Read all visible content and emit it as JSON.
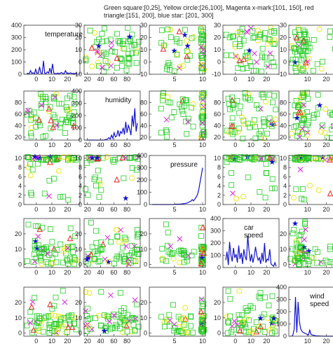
{
  "chart_data": {
    "type": "scatter-matrix",
    "title": "Green square:[0,25], Yellow circle:[26,100], Magenta x-mark:[101, 150], red triangle:[151, 200], blue star: [201, 300]",
    "variables": [
      "temperature",
      "humidity",
      "pressure",
      "car speed",
      "wind speed"
    ],
    "diagonal_labels": [
      [
        "temperature"
      ],
      [
        "humidity"
      ],
      [
        "pressure"
      ],
      [
        "car",
        "speed"
      ],
      [
        "wind",
        "speed"
      ]
    ],
    "diagonal_type": "line",
    "offdiagonal_type": "scatter",
    "colors": {
      "green": "#22cc22",
      "yellow": "#e8e800",
      "magenta": "#dd22dd",
      "red": "#ee2222",
      "blue": "#1111cc",
      "line": "#1111cc"
    },
    "classes": [
      {
        "marker": "square",
        "color": "#22cc22",
        "range": [
          0,
          25
        ]
      },
      {
        "marker": "circle",
        "color": "#e8e800",
        "range": [
          26,
          100
        ]
      },
      {
        "marker": "x-mark",
        "color": "#dd22dd",
        "range": [
          101,
          150
        ]
      },
      {
        "marker": "triangle",
        "color": "#ee2222",
        "range": [
          151,
          200
        ]
      },
      {
        "marker": "star",
        "color": "#1111cc",
        "range": [
          201,
          300
        ]
      }
    ],
    "x_axes": [
      {
        "var": "temperature",
        "ticks": [
          0,
          10,
          20
        ],
        "range": [
          -8,
          28
        ]
      },
      {
        "var": "humidity",
        "ticks": [
          20,
          40,
          60,
          80
        ],
        "range": [
          15,
          100
        ]
      },
      {
        "var": "pressure",
        "ticks": [
          5,
          10
        ],
        "range": [
          0.5,
          10.5
        ]
      },
      {
        "var": "car speed",
        "ticks": [
          0,
          10,
          20
        ],
        "range": [
          -8,
          28
        ]
      },
      {
        "var": "wind speed",
        "ticks": [
          10,
          20
        ],
        "range": [
          0,
          30
        ]
      }
    ],
    "y_axes": [
      {
        "var": "temperature",
        "ticks": [
          -10,
          0,
          10,
          20,
          30
        ],
        "range": [
          -10,
          30
        ]
      },
      {
        "var": "humidity",
        "ticks": [
          20,
          40,
          60,
          80
        ],
        "range": [
          15,
          100
        ]
      },
      {
        "var": "pressure",
        "ticks": [
          0,
          2,
          4,
          6,
          8,
          10
        ],
        "range": [
          0,
          10.6
        ]
      },
      {
        "var": "car speed",
        "ticks": [
          0,
          10,
          20
        ],
        "range": [
          -2,
          30
        ]
      },
      {
        "var": "wind speed",
        "ticks": [
          0,
          10,
          20
        ],
        "range": [
          -2,
          30
        ]
      }
    ],
    "diag_y_axis": {
      "ticks": [
        0,
        100,
        200,
        300,
        400
      ],
      "range": [
        0,
        400
      ]
    },
    "series": [
      {
        "name": "temperature",
        "values": [
          5,
          8,
          3,
          30,
          6,
          12,
          4,
          40,
          10,
          7,
          60,
          9,
          5,
          110,
          8,
          6,
          20,
          9,
          50,
          7,
          85,
          9,
          6,
          4,
          10,
          5,
          8,
          15,
          6,
          5,
          30,
          7,
          9,
          6,
          12,
          4,
          8,
          5,
          7,
          3
        ]
      },
      {
        "name": "humidity",
        "values": [
          0,
          0,
          0,
          0,
          0,
          0,
          0,
          0,
          0,
          0,
          0,
          0,
          0,
          0,
          3,
          5,
          10,
          20,
          8,
          40,
          15,
          60,
          25,
          35,
          80,
          30,
          70,
          55,
          100,
          45,
          150,
          60,
          120,
          90,
          40,
          200,
          110,
          260,
          70,
          140
        ]
      },
      {
        "name": "pressure",
        "values": [
          0,
          0,
          0,
          0,
          0,
          0,
          0,
          0,
          0,
          0,
          0,
          0,
          0,
          0,
          0,
          0,
          0,
          0,
          2,
          3,
          2,
          4,
          3,
          5,
          6,
          8,
          10,
          12,
          18,
          22,
          28,
          40,
          30,
          45,
          60,
          80,
          120,
          180,
          240,
          300
        ]
      },
      {
        "name": "car speed",
        "values": [
          60,
          130,
          20,
          210,
          100,
          50,
          160,
          80,
          110,
          40,
          180,
          70,
          120,
          30,
          150,
          90,
          60,
          260,
          140,
          50,
          110,
          40,
          90,
          170,
          100,
          60,
          80,
          30,
          120,
          50,
          200,
          40,
          70,
          60,
          150,
          30,
          20,
          10,
          40,
          10
        ]
      },
      {
        "name": "wind speed",
        "values": [
          0,
          10,
          60,
          320,
          30,
          280,
          120,
          60,
          40,
          30,
          25,
          20,
          15,
          10,
          50,
          15,
          10,
          8,
          5,
          3,
          2,
          2,
          1,
          1,
          1,
          0,
          0,
          0,
          0,
          0,
          0,
          0,
          0,
          0,
          0,
          0,
          0,
          0,
          0,
          0
        ]
      }
    ]
  }
}
